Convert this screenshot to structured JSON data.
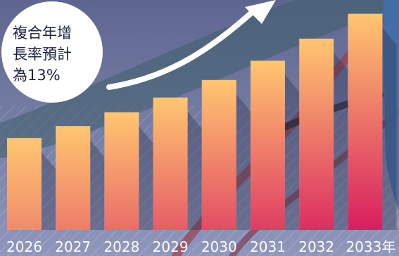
{
  "chart_data": {
    "type": "bar",
    "title": "",
    "xlabel": "",
    "ylabel": "",
    "categories": [
      "2026",
      "2027",
      "2028",
      "2029",
      "2030",
      "2031",
      "2032",
      "2033年"
    ],
    "values": [
      100,
      113,
      128,
      144,
      163,
      184,
      208,
      235
    ],
    "ylim": [
      0,
      250
    ],
    "grid": false,
    "legend": "none",
    "annotation": {
      "lines": [
        "複合年增",
        "長率預計",
        "為13%"
      ]
    },
    "colors": {
      "background_top": "#5e6690",
      "background_bottom": "#8f96bb",
      "bar_top": "#ffc670",
      "bar_bottom_light": "#f08c6c",
      "bar_bottom_dark": "#d81e60",
      "arrow": "#ffffff",
      "label": "#ffffff",
      "bubble": "#ffffff",
      "bubble_text": "#1c2340"
    }
  }
}
